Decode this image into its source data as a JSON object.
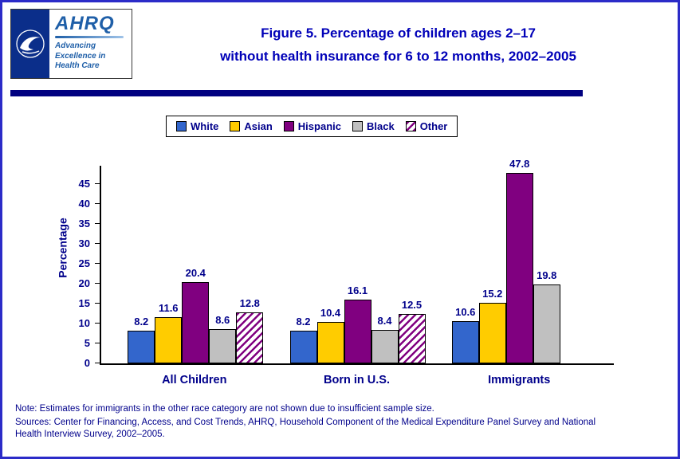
{
  "page": {
    "title_line1": "Figure 5. Percentage of children ages 2–17",
    "title_line2": "without health insurance for 6 to 12 months, 2002–2005",
    "note": "Note:  Estimates for immigrants in the other race category are not shown due to insufficient sample size.",
    "sources": "Sources: Center for Financing, Access, and Cost Trends, AHRQ, Household Component of the Medical Expenditure Panel Survey and National Health Interview Survey, 2002–2005."
  },
  "logo": {
    "org": "AHRQ",
    "tagline_line1": "Advancing",
    "tagline_line2": "Excellence in",
    "tagline_line3": "Health Care",
    "hhs_icon": "hhs-eagle-seal"
  },
  "colors": {
    "title_blue": "#0000b8",
    "chart_text_navy": "#00008b",
    "divider_navy": "#000080",
    "page_border_blue": "#2b2bc8"
  },
  "chart_data": {
    "type": "bar",
    "title": "Percentage of children ages 2–17 without health insurance for 6 to 12 months, 2002–2005",
    "categories": [
      "All Children",
      "Born in U.S.",
      "Immigrants"
    ],
    "series": [
      {
        "name": "White",
        "color": "#3366cc",
        "values": [
          8.2,
          8.2,
          10.6
        ]
      },
      {
        "name": "Asian",
        "color": "#ffcc00",
        "values": [
          11.6,
          10.4,
          15.2
        ]
      },
      {
        "name": "Hispanic",
        "color": "#800080",
        "values": [
          20.4,
          16.1,
          47.8
        ]
      },
      {
        "name": "Black",
        "color": "#c0c0c0",
        "values": [
          8.6,
          8.4,
          19.8
        ]
      },
      {
        "name": "Other",
        "color": "#800080",
        "pattern": "diagonal-hatch",
        "values": [
          12.8,
          12.5,
          null
        ]
      }
    ],
    "xlabel": "",
    "ylabel": "Percentage",
    "yticks": [
      0,
      5,
      10,
      15,
      20,
      25,
      30,
      35,
      40,
      45
    ],
    "ylim": [
      0,
      50
    ],
    "grid": false,
    "legend_position": "top"
  }
}
